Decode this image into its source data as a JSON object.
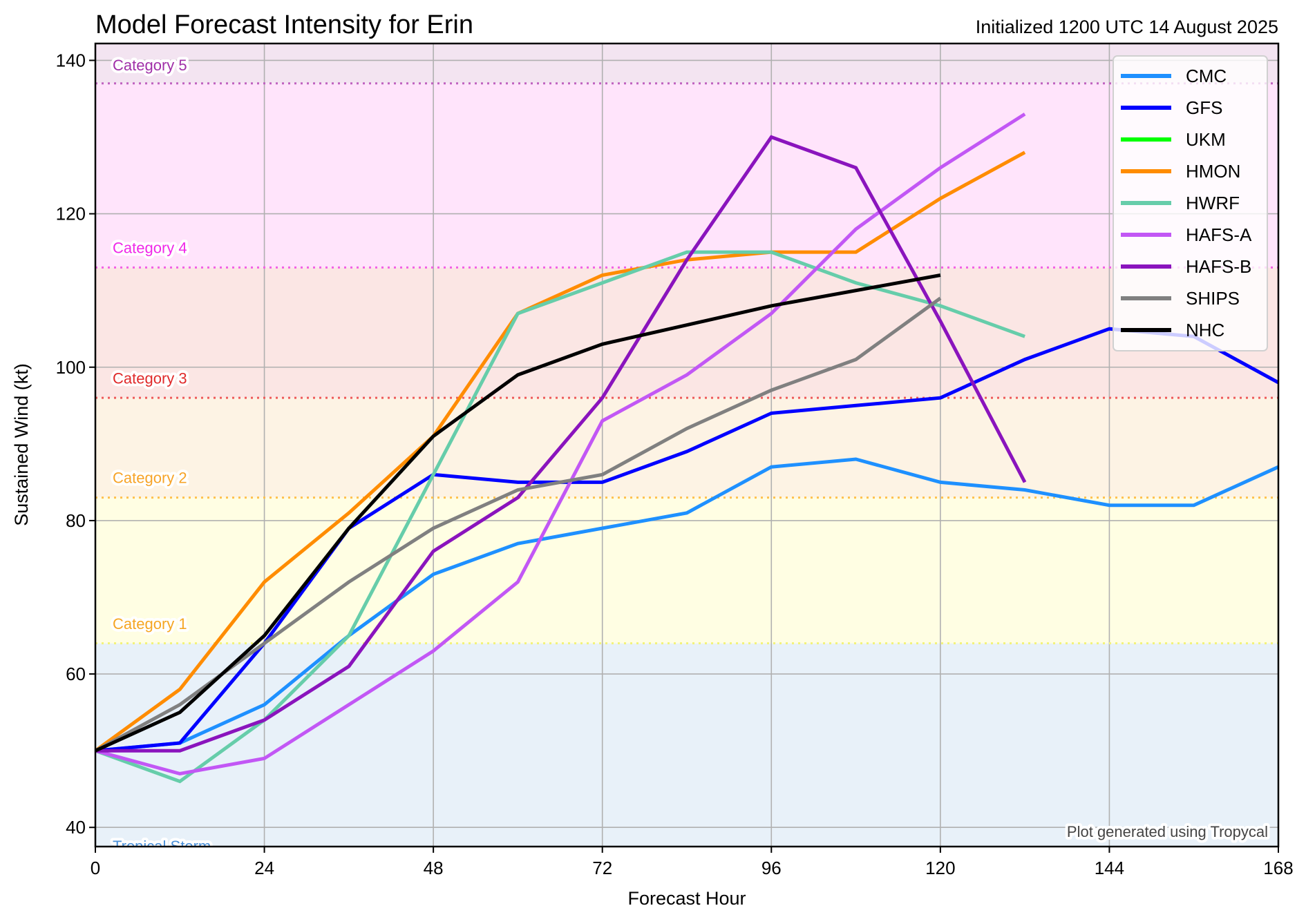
{
  "chart_data": {
    "type": "line",
    "title": "Model Forecast Intensity for Erin",
    "subtitle": "Initialized 1200 UTC 14 August 2025",
    "xlabel": "Forecast Hour",
    "ylabel": "Sustained Wind (kt)",
    "xlim": [
      0,
      168
    ],
    "ylim": [
      37.5,
      142.2
    ],
    "xticks": [
      0,
      24,
      48,
      72,
      96,
      120,
      144,
      168
    ],
    "yticks": [
      40,
      60,
      80,
      100,
      120,
      140
    ],
    "grid": true,
    "legend_position": "top-right",
    "credit": "Plot generated using Tropycal",
    "categories": [
      {
        "label": "Tropical Storm",
        "min": 34,
        "max": 64,
        "fill": "#e8f1f9",
        "line": "#a9c8e8",
        "text": "#4a90d9"
      },
      {
        "label": "Category 1",
        "min": 64,
        "max": 83,
        "fill": "#fffee3",
        "line": "#f2f27a",
        "text": "#f5a623"
      },
      {
        "label": "Category 2",
        "min": 83,
        "max": 96,
        "fill": "#fdf3e4",
        "line": "#ffc14d",
        "text": "#f7a428"
      },
      {
        "label": "Category 3",
        "min": 96,
        "max": 113,
        "fill": "#fbe6e4",
        "line": "#ee5a5a",
        "text": "#e02a2a"
      },
      {
        "label": "Category 4",
        "min": 113,
        "max": 137,
        "fill": "#ffe4fb",
        "line": "#f260e6",
        "text": "#f028e8"
      },
      {
        "label": "Category 5",
        "min": 137,
        "max": 150,
        "fill": "#f3e4f1",
        "line": "#c062c0",
        "text": "#a030a8"
      }
    ],
    "series": [
      {
        "name": "CMC",
        "color": "#1e90ff",
        "x": [
          0,
          12,
          24,
          36,
          48,
          60,
          72,
          84,
          96,
          108,
          120,
          132,
          144,
          156,
          168
        ],
        "y": [
          50,
          51,
          56,
          65,
          73,
          77,
          79,
          81,
          87,
          88,
          85,
          84,
          82,
          82,
          87
        ]
      },
      {
        "name": "GFS",
        "color": "#0000ff",
        "x": [
          0,
          12,
          24,
          36,
          48,
          60,
          72,
          84,
          96,
          108,
          120,
          132,
          144,
          156,
          168
        ],
        "y": [
          50,
          51,
          64,
          79,
          86,
          85,
          85,
          89,
          94,
          95,
          96,
          101,
          105,
          104,
          98
        ]
      },
      {
        "name": "UKM",
        "color": "#00ff00",
        "x": [],
        "y": []
      },
      {
        "name": "HMON",
        "color": "#ff8c00",
        "x": [
          0,
          12,
          24,
          36,
          48,
          60,
          72,
          84,
          96,
          108,
          120,
          132
        ],
        "y": [
          50,
          58,
          72,
          81,
          91,
          107,
          112,
          114,
          115,
          115,
          122,
          128
        ]
      },
      {
        "name": "HWRF",
        "color": "#66cdaa",
        "x": [
          0,
          12,
          24,
          36,
          48,
          60,
          72,
          84,
          96,
          108,
          120,
          132
        ],
        "y": [
          50,
          46,
          54,
          65,
          86,
          107,
          111,
          115,
          115,
          111,
          108,
          104
        ]
      },
      {
        "name": "HAFS-A",
        "color": "#c257f5",
        "x": [
          0,
          12,
          24,
          36,
          48,
          60,
          72,
          84,
          96,
          108,
          120,
          132
        ],
        "y": [
          50,
          47,
          49,
          56,
          63,
          72,
          93,
          99,
          107,
          118,
          126,
          133
        ]
      },
      {
        "name": "HAFS-B",
        "color": "#8a14bd",
        "x": [
          0,
          12,
          24,
          36,
          48,
          60,
          72,
          84,
          96,
          108,
          120,
          132
        ],
        "y": [
          50,
          50,
          54,
          61,
          76,
          83,
          96,
          114,
          130,
          126,
          106,
          85
        ]
      },
      {
        "name": "SHIPS",
        "color": "#808080",
        "x": [
          0,
          12,
          24,
          36,
          48,
          60,
          72,
          84,
          96,
          108,
          120
        ],
        "y": [
          50,
          56,
          64,
          72,
          79,
          84,
          86,
          92,
          97,
          101,
          109
        ]
      },
      {
        "name": "NHC",
        "color": "#000000",
        "x": [
          0,
          12,
          24,
          36,
          48,
          60,
          72,
          96,
          120
        ],
        "y": [
          50,
          55,
          65,
          79,
          91,
          99,
          103,
          108,
          112
        ]
      }
    ]
  }
}
